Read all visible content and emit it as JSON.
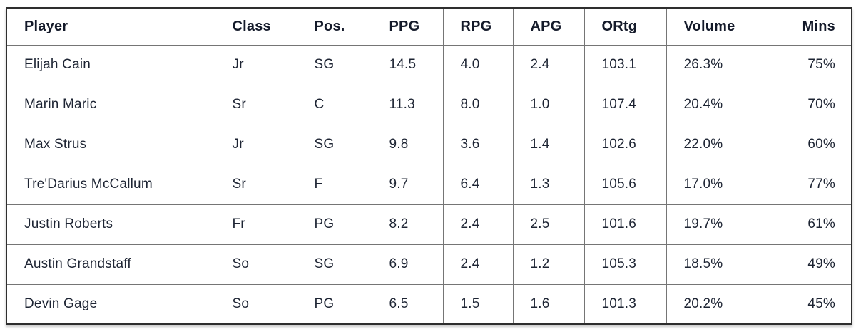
{
  "chart_data": {
    "type": "table",
    "columns": [
      "Player",
      "Class",
      "Pos.",
      "PPG",
      "RPG",
      "APG",
      "ORtg",
      "Volume",
      "Mins"
    ],
    "rows": [
      [
        "Elijah Cain",
        "Jr",
        "SG",
        "14.5",
        "4.0",
        "2.4",
        "103.1",
        "26.3%",
        "75%"
      ],
      [
        "Marin Maric",
        "Sr",
        "C",
        "11.3",
        "8.0",
        "1.0",
        "107.4",
        "20.4%",
        "70%"
      ],
      [
        "Max Strus",
        "Jr",
        "SG",
        "9.8",
        "3.6",
        "1.4",
        "102.6",
        "22.0%",
        "60%"
      ],
      [
        "Tre'Darius McCallum",
        "Sr",
        "F",
        "9.7",
        "6.4",
        "1.3",
        "105.6",
        "17.0%",
        "77%"
      ],
      [
        "Justin Roberts",
        "Fr",
        "PG",
        "8.2",
        "2.4",
        "2.5",
        "101.6",
        "19.7%",
        "61%"
      ],
      [
        "Austin Grandstaff",
        "So",
        "SG",
        "6.9",
        "2.4",
        "1.2",
        "105.3",
        "18.5%",
        "49%"
      ],
      [
        "Devin Gage",
        "So",
        "PG",
        "6.5",
        "1.5",
        "1.6",
        "101.3",
        "20.2%",
        "45%"
      ]
    ]
  },
  "colors": {
    "text": "#1d2433",
    "header_text": "#141a2a",
    "border_outer": "#2e2e2e",
    "border_inner": "#757575",
    "background": "#ffffff"
  }
}
